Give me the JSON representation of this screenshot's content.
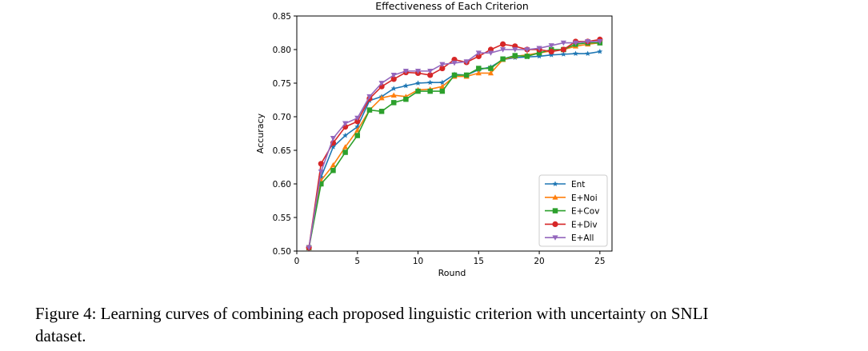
{
  "chart_data": {
    "type": "line",
    "title": "Effectiveness of Each Criterion",
    "xlabel": "Round",
    "ylabel": "Accuracy",
    "xlim": [
      0,
      26
    ],
    "ylim": [
      0.5,
      0.85
    ],
    "xticks": [
      "0",
      "5",
      "10",
      "15",
      "20",
      "25"
    ],
    "yticks": [
      "0.50",
      "0.55",
      "0.60",
      "0.65",
      "0.70",
      "0.75",
      "0.80",
      "0.85"
    ],
    "grid": false,
    "legend_position": "lower-right",
    "x": [
      1,
      2,
      3,
      4,
      5,
      6,
      7,
      8,
      9,
      10,
      11,
      12,
      13,
      14,
      15,
      16,
      17,
      18,
      19,
      20,
      21,
      22,
      23,
      24,
      25
    ],
    "series": [
      {
        "name": "Ent",
        "color": "#1f77b4",
        "marker": "star",
        "values": [
          0.505,
          0.61,
          0.655,
          0.672,
          0.685,
          0.724,
          0.73,
          0.742,
          0.746,
          0.75,
          0.751,
          0.751,
          0.763,
          0.762,
          0.77,
          0.774,
          0.785,
          0.788,
          0.789,
          0.79,
          0.792,
          0.793,
          0.794,
          0.794,
          0.797
        ]
      },
      {
        "name": "E+Noi",
        "color": "#ff7f0e",
        "marker": "triangle-up",
        "values": [
          0.505,
          0.605,
          0.628,
          0.655,
          0.68,
          0.71,
          0.728,
          0.732,
          0.73,
          0.74,
          0.741,
          0.745,
          0.76,
          0.76,
          0.765,
          0.765,
          0.785,
          0.79,
          0.792,
          0.795,
          0.798,
          0.8,
          0.805,
          0.808,
          0.81
        ]
      },
      {
        "name": "E+Cov",
        "color": "#2ca02c",
        "marker": "square",
        "values": [
          0.505,
          0.6,
          0.62,
          0.647,
          0.672,
          0.71,
          0.708,
          0.721,
          0.726,
          0.738,
          0.738,
          0.738,
          0.762,
          0.762,
          0.772,
          0.772,
          0.786,
          0.791,
          0.79,
          0.795,
          0.8,
          0.8,
          0.808,
          0.81,
          0.81
        ]
      },
      {
        "name": "E+Div",
        "color": "#d62728",
        "marker": "circle",
        "values": [
          0.505,
          0.63,
          0.661,
          0.685,
          0.693,
          0.727,
          0.745,
          0.756,
          0.766,
          0.765,
          0.762,
          0.772,
          0.785,
          0.781,
          0.79,
          0.8,
          0.808,
          0.805,
          0.8,
          0.8,
          0.797,
          0.8,
          0.812,
          0.812,
          0.815
        ]
      },
      {
        "name": "E+All",
        "color": "#9467bd",
        "marker": "triangle-down",
        "values": [
          0.505,
          0.618,
          0.668,
          0.69,
          0.698,
          0.73,
          0.75,
          0.762,
          0.768,
          0.768,
          0.768,
          0.778,
          0.78,
          0.782,
          0.795,
          0.795,
          0.8,
          0.8,
          0.8,
          0.802,
          0.806,
          0.81,
          0.81,
          0.812,
          0.812
        ]
      }
    ]
  },
  "caption": {
    "line1": "Figure 4: Learning curves of combining each proposed linguistic criterion with uncertainty on SNLI",
    "line2": "dataset."
  }
}
